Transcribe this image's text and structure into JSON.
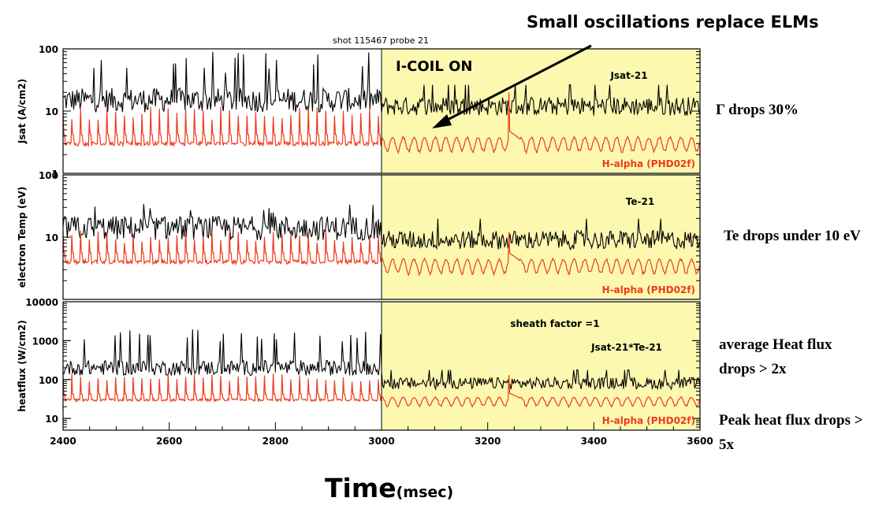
{
  "chart_data": {
    "type": "line",
    "title": "shot 115467  probe 21",
    "xlabel": "Time",
    "xlabel_unit": "(msec)",
    "xlim": [
      2400,
      3600
    ],
    "xticks": [
      "2400",
      "2600",
      "2800",
      "3000",
      "3200",
      "3400",
      "3600"
    ],
    "highlight": {
      "from": 3000,
      "to": 3600,
      "color": "#fdf8b0",
      "label": "I-COIL ON"
    },
    "colors": {
      "signal": "#000000",
      "halpha": "#ef3a1c",
      "annotation": "#ef3a1c"
    },
    "grid": false,
    "panels": [
      {
        "ylabel": "Jsat (A/cm2)",
        "scale": "log",
        "ylim": [
          1,
          100
        ],
        "yticks": [
          "1",
          "10",
          "100"
        ],
        "series": [
          {
            "name": "Jsat-21",
            "color": "#000000",
            "base_before": 15,
            "base_after": 12,
            "elm_peak": 90
          },
          {
            "name": "H-alpha (PHD02f)",
            "color": "#ef3a1c",
            "base_before": 3,
            "base_after": 3,
            "elm_peak": 9,
            "spike_at": 3240,
            "spike_peak": 20
          }
        ]
      },
      {
        "ylabel": "electron Temp (eV)",
        "scale": "log",
        "ylim": [
          1,
          100
        ],
        "yticks": [
          "10",
          "100"
        ],
        "series": [
          {
            "name": "Te-21",
            "color": "#000000",
            "base_before": 14,
            "base_after": 9,
            "elm_peak": 35
          },
          {
            "name": "H-alpha (PHD02f)",
            "color": "#ef3a1c",
            "base_before": 4,
            "base_after": 3.5,
            "elm_peak": 10,
            "spike_at": 3240,
            "spike_peak": 12
          }
        ]
      },
      {
        "ylabel": "heatflux (W/cm2)",
        "scale": "log",
        "ylim": [
          5,
          10000
        ],
        "yticks": [
          "10",
          "100",
          "1000",
          "10000"
        ],
        "series": [
          {
            "name": "Jsat-21*Te-21",
            "color": "#000000",
            "base_before": 200,
            "base_after": 80,
            "elm_peak": 2000
          },
          {
            "name": "H-alpha (PHD02f)",
            "color": "#ef3a1c",
            "base_before": 30,
            "base_after": 28,
            "elm_peak": 110,
            "spike_at": 3240,
            "spike_peak": 130
          }
        ],
        "annotations": [
          "sheath factor =1"
        ]
      }
    ],
    "arrow_annotation": "Small oscillations replace ELMs",
    "side_notes": [
      "Γ drops 30%",
      "Te drops under 10 eV",
      "average Heat flux drops > 2x",
      "Peak heat flux drops > 5x"
    ]
  }
}
